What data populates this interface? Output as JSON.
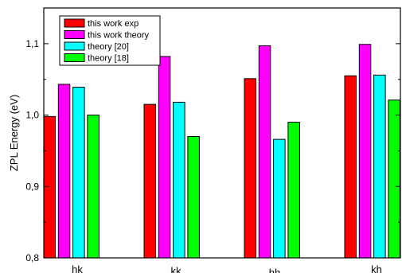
{
  "chart_data": {
    "type": "bar",
    "categories": [
      "hk",
      "kk",
      "hh",
      "kh"
    ],
    "ylabel": "ZPL Energy (eV)",
    "xlabel": "",
    "ylim": [
      0.8,
      1.15
    ],
    "yticks": [
      {
        "value": 0.8,
        "label": "0,8"
      },
      {
        "value": 0.9,
        "label": "0,9"
      },
      {
        "value": 1.0,
        "label": "1,0"
      },
      {
        "value": 1.1,
        "label": "1,1"
      }
    ],
    "grid": false,
    "legend_position": "top-left",
    "series": [
      {
        "name": "this work exp",
        "color": "#ff0000",
        "values": [
          0.998,
          1.015,
          1.051,
          1.055
        ]
      },
      {
        "name": "this work theory",
        "color": "#ff00ff",
        "values": [
          1.043,
          1.082,
          1.097,
          1.099
        ]
      },
      {
        "name": "theory [20]",
        "color": "#00ffff",
        "values": [
          1.039,
          1.018,
          0.966,
          1.056
        ]
      },
      {
        "name": "theory [18]",
        "color": "#00ff00",
        "values": [
          1.0,
          0.97,
          0.99,
          1.021
        ]
      }
    ]
  }
}
